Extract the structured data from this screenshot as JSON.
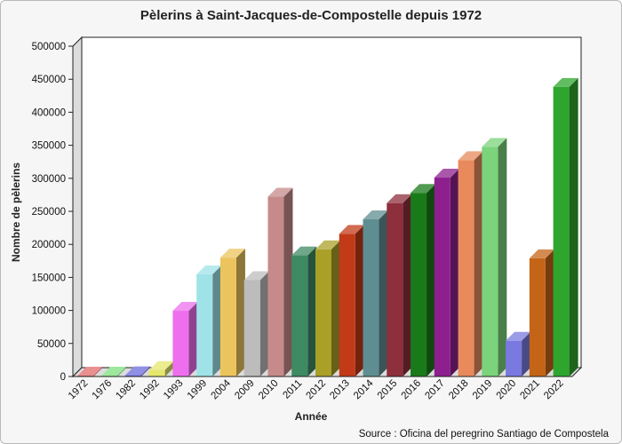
{
  "chart_data": {
    "type": "bar",
    "title": "Pèlerins à Saint-Jacques-de-Compostelle depuis 1972",
    "xlabel": "Année",
    "ylabel": "Nombre de pèlerins",
    "source": "Source : Oficina del peregrino Santiago de Compostela",
    "ylim": [
      0,
      500000
    ],
    "yticks": [
      "0",
      "50000",
      "100000",
      "150000",
      "200000",
      "250000",
      "300000",
      "350000",
      "400000",
      "450000",
      "500000"
    ],
    "categories": [
      "1972",
      "1976",
      "1982",
      "1992",
      "1993",
      "1999",
      "2004",
      "2009",
      "2010",
      "2011",
      "2012",
      "2013",
      "2014",
      "2015",
      "2016",
      "2017",
      "2018",
      "2019",
      "2020",
      "2021",
      "2022"
    ],
    "values": [
      67,
      243,
      1868,
      9764,
      99436,
      154613,
      179944,
      145877,
      272135,
      183366,
      192488,
      215880,
      237886,
      262458,
      277915,
      301036,
      327378,
      347578,
      54144,
      178912,
      438307
    ],
    "colors": [
      "#e26b6b",
      "#7ee07e",
      "#6b6bdb",
      "#e6e66b",
      "#ee6fee",
      "#9fe3e8",
      "#ecc45e",
      "#bcbcbc",
      "#c68a8a",
      "#3e8a62",
      "#aaa028",
      "#c23a17",
      "#5f8e92",
      "#8e2f3c",
      "#197a19",
      "#8e1f8e",
      "#e88a5c",
      "#7bd37b",
      "#7979e0",
      "#c46417",
      "#2ea62e"
    ],
    "grid": false,
    "legend": "none"
  }
}
